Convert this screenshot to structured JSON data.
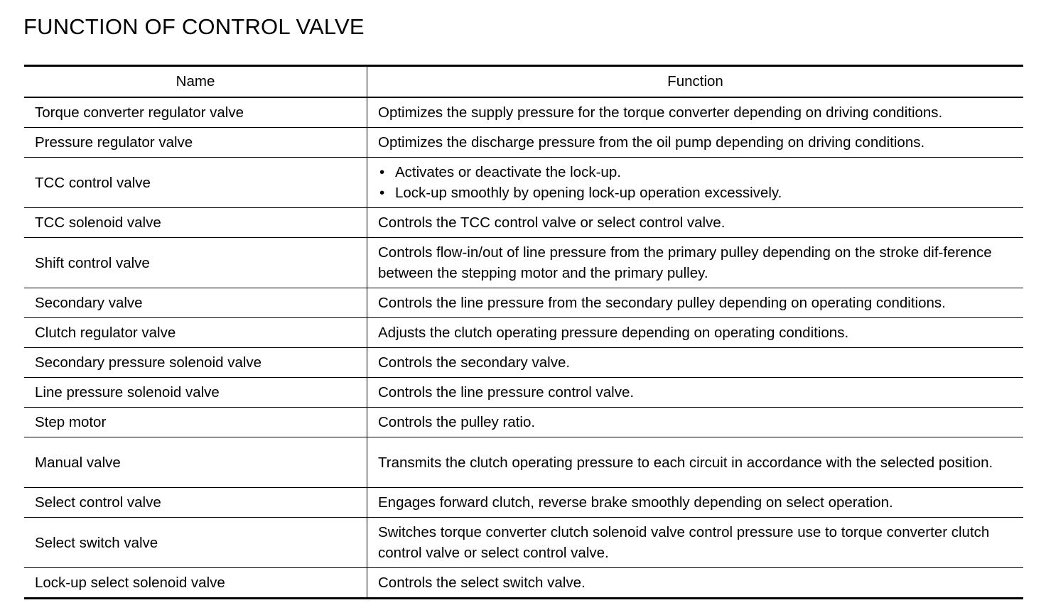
{
  "title": "FUNCTION OF CONTROL VALVE",
  "table": {
    "headers": [
      "Name",
      "Function"
    ],
    "rows": [
      {
        "name": "Torque converter regulator valve",
        "function": "Optimizes the supply pressure for the torque converter depending on driving conditions."
      },
      {
        "name": "Pressure regulator valve",
        "function": "Optimizes the discharge pressure from the oil pump depending on driving conditions."
      },
      {
        "name": "TCC control valve",
        "bullets": [
          "Activates or deactivate the lock-up.",
          "Lock-up smoothly by opening lock-up operation excessively."
        ]
      },
      {
        "name": "TCC solenoid valve",
        "function": "Controls the TCC control valve or select control valve."
      },
      {
        "name": "Shift control valve",
        "function": "Controls flow-in/out of line pressure from the primary pulley depending on the stroke dif-ference between the stepping motor and the primary pulley.",
        "double": true
      },
      {
        "name": "Secondary valve",
        "function": "Controls the line pressure from the secondary pulley depending on operating conditions."
      },
      {
        "name": "Clutch regulator valve",
        "function": "Adjusts the clutch operating pressure depending on operating conditions."
      },
      {
        "name": "Secondary pressure solenoid valve",
        "function": "Controls the secondary valve."
      },
      {
        "name": "Line pressure solenoid valve",
        "function": "Controls the line pressure control valve."
      },
      {
        "name": "Step motor",
        "function": "Controls the pulley ratio."
      },
      {
        "name": "Manual valve",
        "function": "Transmits the clutch operating pressure to each circuit in accordance with the selected position.",
        "double": true
      },
      {
        "name": "Select control valve",
        "function": "Engages forward clutch, reverse brake smoothly depending on select operation."
      },
      {
        "name": "Select switch valve",
        "function": "Switches torque converter clutch solenoid valve control pressure use to torque converter clutch control valve or select control valve.",
        "double": true
      },
      {
        "name": "Lock-up select solenoid valve",
        "function": "Controls the select switch valve."
      }
    ]
  }
}
